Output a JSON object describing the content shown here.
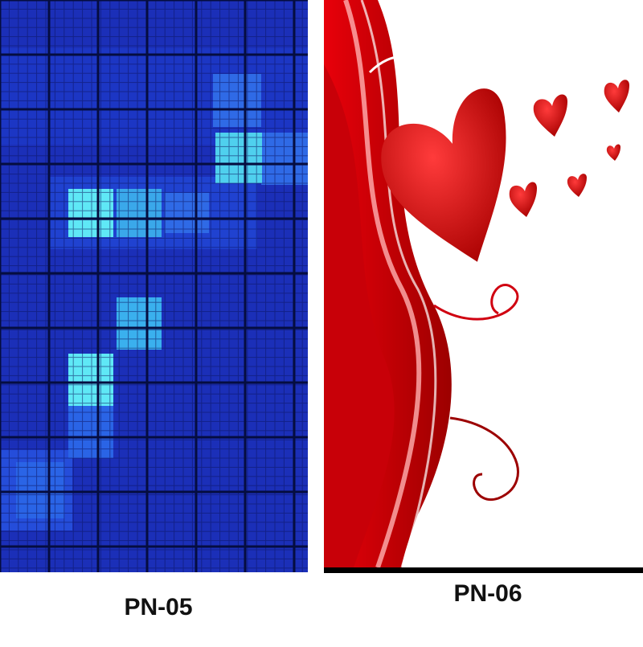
{
  "panels": [
    {
      "label": "PN-05"
    },
    {
      "label": "PN-06"
    }
  ]
}
